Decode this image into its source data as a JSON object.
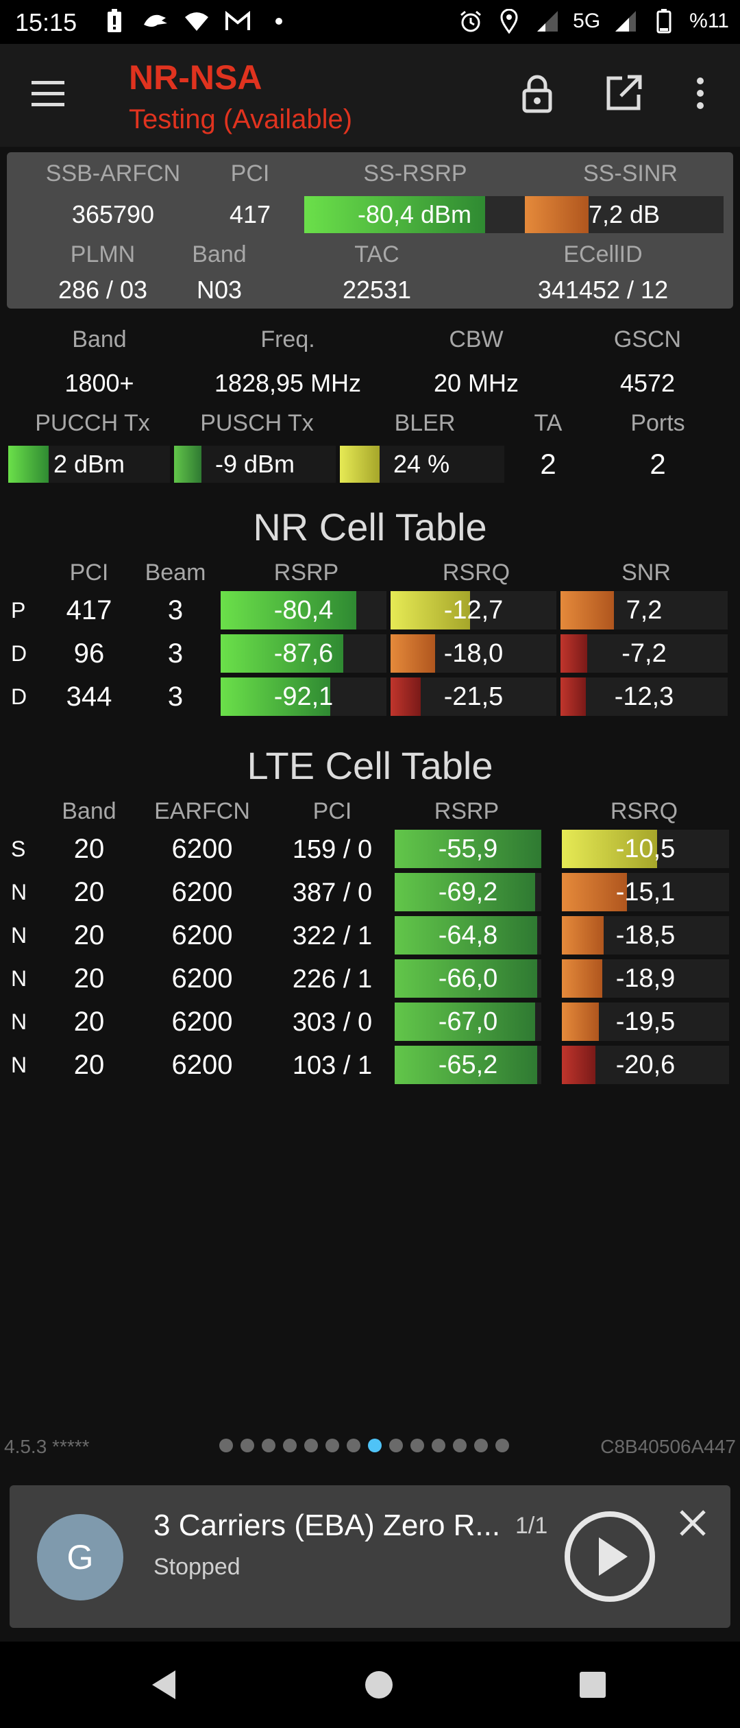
{
  "status_bar": {
    "time": "15:15",
    "network": "5G",
    "battery": "%11",
    "left_icons": [
      "battery-alert-icon",
      "app-icon",
      "wifi-icon",
      "gmail-icon",
      "dot-icon"
    ],
    "right_icons": [
      "alarm-icon",
      "location-icon",
      "signal-icon",
      "signal-icon",
      "battery-icon"
    ]
  },
  "app_bar": {
    "title": "NR-NSA",
    "subtitle": "Testing (Available)"
  },
  "serving": {
    "labels": {
      "ssb_arfcn": "SSB-ARFCN",
      "pci": "PCI",
      "ss_rsrp": "SS-RSRP",
      "ss_sinr": "SS-SINR",
      "plmn": "PLMN",
      "band": "Band",
      "tac": "TAC",
      "ecellid": "ECellID"
    },
    "ssb_arfcn": "365790",
    "pci": "417",
    "ss_rsrp": "-80,4 dBm",
    "ss_rsrp_level": 0.82,
    "ss_sinr": "7,2 dB",
    "ss_sinr_level": 0.32,
    "plmn": "286 / 03",
    "band": "N03",
    "tac": "22531",
    "ecellid": "341452 / 12"
  },
  "radio": {
    "labels": {
      "band": "Band",
      "freq": "Freq.",
      "cbw": "CBW",
      "gscn": "GSCN",
      "pucch": "PUCCH Tx",
      "pusch": "PUSCH Tx",
      "bler": "BLER",
      "ta": "TA",
      "ports": "Ports"
    },
    "band": "1800+",
    "freq": "1828,95 MHz",
    "cbw": "20 MHz",
    "gscn": "4572",
    "pucch": "2 dBm",
    "pucch_level": 0.25,
    "pusch": "-9 dBm",
    "pusch_level": 0.17,
    "bler": "24",
    "bler_unit": "%",
    "bler_level": 0.24,
    "ta": "2",
    "ports": "2"
  },
  "nr_table": {
    "title": "NR Cell Table",
    "headers": [
      "PCI",
      "Beam",
      "RSRP",
      "RSRQ",
      "SNR"
    ],
    "rows": [
      {
        "type": "P",
        "pci": "417",
        "beam": "3",
        "rsrp": "-80,4",
        "rsrp_level": 0.82,
        "rsrq": "-12,7",
        "rsrq_level": 0.48,
        "snr": "7,2",
        "snr_level": 0.32
      },
      {
        "type": "D",
        "pci": "96",
        "beam": "3",
        "rsrp": "-87,6",
        "rsrp_level": 0.74,
        "rsrq": "-18,0",
        "rsrq_level": 0.27,
        "snr": "-7,2",
        "snr_level": 0.16
      },
      {
        "type": "D",
        "pci": "344",
        "beam": "3",
        "rsrp": "-92,1",
        "rsrp_level": 0.66,
        "rsrq": "-21,5",
        "rsrq_level": 0.18,
        "snr": "-12,3",
        "snr_level": 0.15
      }
    ]
  },
  "lte_table": {
    "title": "LTE Cell Table",
    "headers": [
      "Band",
      "EARFCN",
      "PCI",
      "RSRP",
      "RSRQ"
    ],
    "rows": [
      {
        "type": "S",
        "band": "20",
        "earfcn": "6200",
        "pci": "159 / 0",
        "rsrp": "-55,9",
        "rsrp_level": 1.0,
        "rsrq": "-10,5",
        "rsrq_level": 0.57
      },
      {
        "type": "N",
        "band": "20",
        "earfcn": "6200",
        "pci": "387 / 0",
        "rsrp": "-69,2",
        "rsrp_level": 0.96,
        "rsrq": "-15,1",
        "rsrq_level": 0.39
      },
      {
        "type": "N",
        "band": "20",
        "earfcn": "6200",
        "pci": "322 / 1",
        "rsrp": "-64,8",
        "rsrp_level": 0.97,
        "rsrq": "-18,5",
        "rsrq_level": 0.25
      },
      {
        "type": "N",
        "band": "20",
        "earfcn": "6200",
        "pci": "226 / 1",
        "rsrp": "-66,0",
        "rsrp_level": 0.97,
        "rsrq": "-18,9",
        "rsrq_level": 0.24
      },
      {
        "type": "N",
        "band": "20",
        "earfcn": "6200",
        "pci": "303 / 0",
        "rsrp": "-67,0",
        "rsrp_level": 0.96,
        "rsrq": "-19,5",
        "rsrq_level": 0.22
      },
      {
        "type": "N",
        "band": "20",
        "earfcn": "6200",
        "pci": "103 / 1",
        "rsrp": "-65,2",
        "rsrp_level": 0.97,
        "rsrq": "-20,6",
        "rsrq_level": 0.2
      }
    ]
  },
  "footer": {
    "version": "4.5.3 *****",
    "device_id": "C8B40506A447",
    "page_count": 14,
    "active_page": 8
  },
  "notification": {
    "avatar_letter": "G",
    "title": "3 Carriers (EBA) Zero R...",
    "count": "1/1",
    "status": "Stopped"
  }
}
